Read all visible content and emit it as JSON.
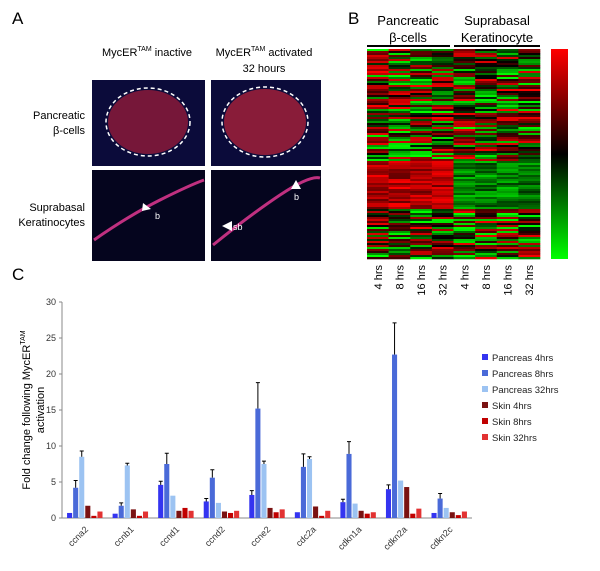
{
  "panel_labels": [
    "A",
    "B",
    "C"
  ],
  "panel_a": {
    "columns": [
      {
        "text": "MycER",
        "sup": "TAM",
        "rest": " inactive"
      },
      {
        "text": "MycER",
        "sup": "TAM",
        "rest": " activated",
        "line2": "32 hours"
      }
    ],
    "rows": [
      [
        "Pancreatic",
        "β-cells"
      ],
      [
        "Suprabasal",
        "Keratinocytes"
      ]
    ],
    "arrow_labels": [
      "b",
      "b",
      "sb"
    ]
  },
  "panel_b": {
    "groups": [
      [
        "Pancreatic",
        "β-cells"
      ],
      [
        "Suprabasal",
        "Keratinocyte"
      ]
    ],
    "columns": [
      "4 hrs",
      "8 hrs",
      "16 hrs",
      "32 hrs",
      "4 hrs",
      "8 hrs",
      "16 hrs",
      "32 hrs"
    ]
  },
  "chart_data": {
    "type": "bar",
    "ylabel": {
      "text": "Fold change following MycER",
      "sup": "TAM",
      "line2": "activation"
    },
    "categories": [
      "ccna2",
      "ccnb1",
      "ccnd1",
      "ccnd2",
      "ccne2",
      "cdc2a",
      "cdkn1a",
      "cdkn2a",
      "cdkn2c"
    ],
    "series": [
      {
        "name": "Pancreas 4hrs",
        "color": "#3434f0",
        "values": [
          0.7,
          0.6,
          4.6,
          2.3,
          3.2,
          0.8,
          2.2,
          4.0,
          0.7
        ],
        "errors": [
          null,
          null,
          0.5,
          0.4,
          0.6,
          null,
          0.4,
          0.6,
          null
        ]
      },
      {
        "name": "Pancreas 8hrs",
        "color": "#4a6ad8",
        "values": [
          4.2,
          1.7,
          7.5,
          5.6,
          15.2,
          7.1,
          8.9,
          22.7,
          2.7
        ],
        "errors": [
          1.0,
          0.4,
          1.5,
          1.1,
          3.6,
          1.8,
          1.7,
          4.4,
          0.7
        ]
      },
      {
        "name": "Pancreas 32hrs",
        "color": "#9cc3f2",
        "values": [
          8.5,
          7.3,
          3.1,
          2.1,
          7.5,
          8.2,
          2.0,
          5.2,
          1.4
        ],
        "errors": [
          0.8,
          0.3,
          null,
          null,
          0.4,
          0.3,
          null,
          null,
          null
        ]
      },
      {
        "name": "Skin 4hrs",
        "color": "#7a1212",
        "values": [
          1.7,
          1.2,
          1.0,
          0.9,
          1.4,
          1.6,
          1.0,
          4.3,
          0.8
        ],
        "errors": [
          null,
          null,
          null,
          null,
          null,
          null,
          null,
          null,
          null
        ]
      },
      {
        "name": "Skin 8hrs",
        "color": "#c00000",
        "values": [
          0.3,
          0.3,
          1.4,
          0.7,
          0.8,
          0.3,
          0.6,
          0.6,
          0.4
        ],
        "errors": [
          null,
          null,
          null,
          null,
          null,
          null,
          null,
          null,
          null
        ]
      },
      {
        "name": "Skin 32hrs",
        "color": "#e23232",
        "values": [
          0.9,
          0.9,
          1.0,
          1.0,
          1.2,
          1.0,
          0.8,
          1.3,
          0.9
        ],
        "errors": [
          null,
          null,
          null,
          null,
          null,
          null,
          null,
          null,
          null
        ]
      }
    ],
    "ylim": [
      0,
      30
    ],
    "yticks": [
      0,
      5,
      10,
      15,
      20,
      25,
      30
    ],
    "grid": false,
    "legend": "right"
  }
}
